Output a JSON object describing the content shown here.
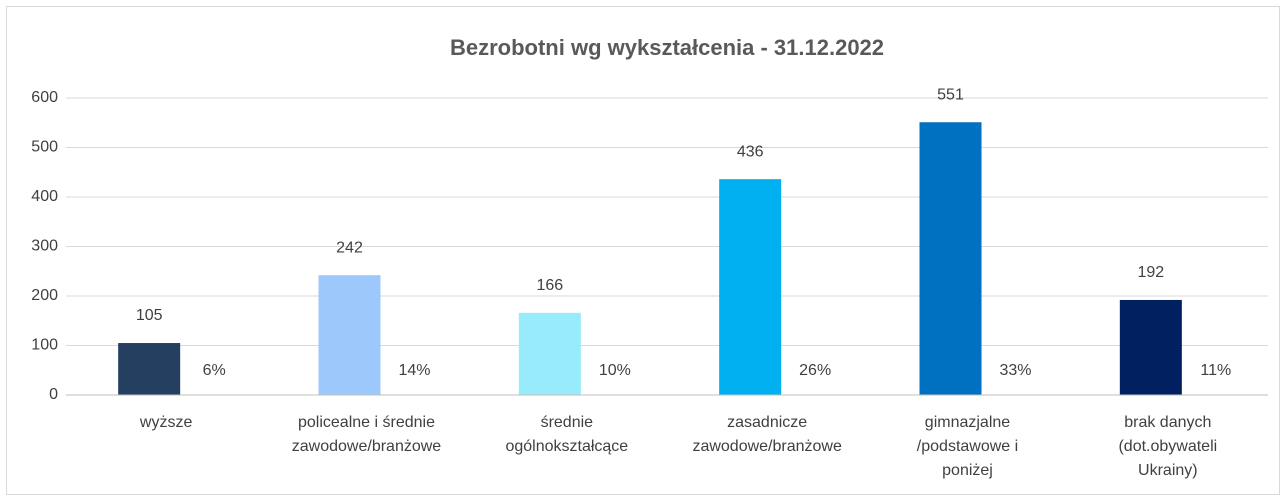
{
  "chart_data": {
    "type": "bar",
    "title": "Bezrobotni wg wykształcenia - 31.12.2022",
    "categories": [
      "wyższe",
      "policealne i średnie\nzawodowe/branżowe",
      "średnie\nogólnokształcące",
      "zasadnicze\nzawodowe/branżowe",
      "gimnazjalne\n/podstawowe i\nponiżej",
      "brak danych\n(dot.obywateli\nUkrainy)"
    ],
    "series": [
      {
        "colors": [
          "#243f60",
          "#9dc8fb",
          "#97ebfb",
          "#00b0f0",
          "#0070c0",
          "#002060"
        ],
        "values": [
          105,
          242,
          166,
          436,
          551,
          192
        ]
      },
      {
        "values": [
          6,
          14,
          10,
          26,
          33,
          11
        ],
        "value_labels": [
          "6%",
          "14%",
          "10%",
          "26%",
          "33%",
          "11%"
        ]
      }
    ],
    "ylim": [
      0,
      600
    ],
    "yticks": [
      0,
      100,
      200,
      300,
      400,
      500,
      600
    ],
    "grid": true
  }
}
